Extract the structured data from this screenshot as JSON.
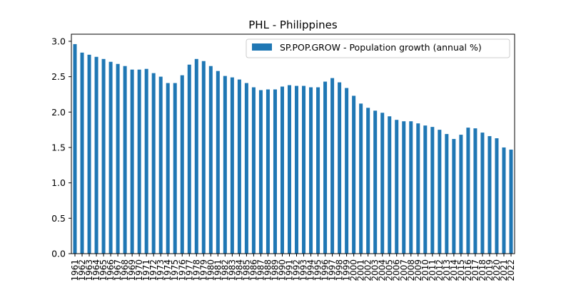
{
  "chart_data": {
    "type": "bar",
    "title": "PHL - Philippines",
    "xlabel": "",
    "ylabel": "",
    "ylim": [
      0,
      3.1
    ],
    "yticks": [
      "0.0",
      "0.5",
      "1.0",
      "1.5",
      "2.0",
      "2.5",
      "3.0"
    ],
    "grid": false,
    "legend_position": "top-right",
    "categories": [
      "1961",
      "1962",
      "1963",
      "1964",
      "1965",
      "1966",
      "1967",
      "1968",
      "1969",
      "1970",
      "1971",
      "1972",
      "1973",
      "1974",
      "1975",
      "1976",
      "1977",
      "1978",
      "1979",
      "1980",
      "1981",
      "1982",
      "1983",
      "1984",
      "1985",
      "1986",
      "1987",
      "1988",
      "1989",
      "1990",
      "1991",
      "1992",
      "1993",
      "1994",
      "1995",
      "1996",
      "1997",
      "1998",
      "1999",
      "2000",
      "2001",
      "2002",
      "2003",
      "2004",
      "2005",
      "2006",
      "2007",
      "2008",
      "2009",
      "2010",
      "2011",
      "2012",
      "2013",
      "2014",
      "2015",
      "2016",
      "2017",
      "2018",
      "2019",
      "2020",
      "2021",
      "2022"
    ],
    "series": [
      {
        "name": "SP.POP.GROW - Population growth (annual %)",
        "color": "#1f77b4",
        "values": [
          2.96,
          2.84,
          2.81,
          2.78,
          2.75,
          2.71,
          2.68,
          2.65,
          2.6,
          2.6,
          2.61,
          2.55,
          2.5,
          2.41,
          2.41,
          2.52,
          2.67,
          2.75,
          2.72,
          2.65,
          2.58,
          2.51,
          2.49,
          2.46,
          2.41,
          2.35,
          2.31,
          2.32,
          2.32,
          2.36,
          2.38,
          2.37,
          2.37,
          2.35,
          2.35,
          2.43,
          2.48,
          2.42,
          2.34,
          2.23,
          2.12,
          2.06,
          2.02,
          1.99,
          1.94,
          1.89,
          1.87,
          1.87,
          1.84,
          1.81,
          1.79,
          1.75,
          1.69,
          1.62,
          1.68,
          1.78,
          1.77,
          1.71,
          1.66,
          1.63,
          1.5,
          1.47
        ]
      }
    ]
  }
}
